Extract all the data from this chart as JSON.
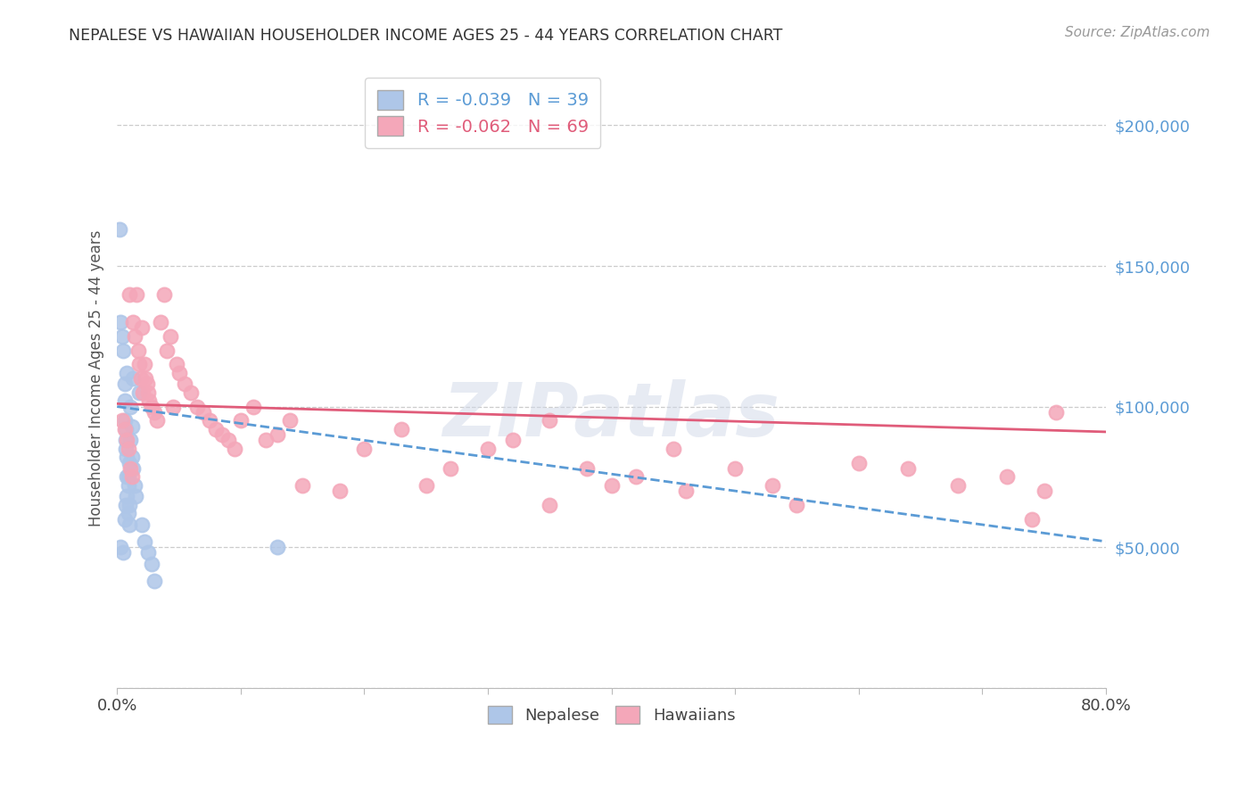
{
  "title": "NEPALESE VS HAWAIIAN HOUSEHOLDER INCOME AGES 25 - 44 YEARS CORRELATION CHART",
  "source": "Source: ZipAtlas.com",
  "ylabel": "Householder Income Ages 25 - 44 years",
  "xlim": [
    0.0,
    0.8
  ],
  "ylim": [
    0,
    220000
  ],
  "r_nepalese": -0.039,
  "n_nepalese": 39,
  "r_hawaiian": -0.062,
  "n_hawaiian": 69,
  "nepalese_color": "#aec6e8",
  "hawaiian_color": "#f4a7b9",
  "nepalese_line_color": "#5b9bd5",
  "hawaiian_line_color": "#e05c7a",
  "nep_line_x0": 0.0,
  "nep_line_y0": 100000,
  "nep_line_x1": 0.8,
  "nep_line_y1": 52000,
  "haw_line_x0": 0.0,
  "haw_line_y0": 101000,
  "haw_line_x1": 0.8,
  "haw_line_y1": 91000,
  "nep_x": [
    0.002,
    0.003,
    0.003,
    0.004,
    0.005,
    0.005,
    0.006,
    0.006,
    0.006,
    0.007,
    0.007,
    0.007,
    0.007,
    0.008,
    0.008,
    0.008,
    0.009,
    0.009,
    0.009,
    0.01,
    0.01,
    0.01,
    0.011,
    0.011,
    0.012,
    0.012,
    0.013,
    0.013,
    0.014,
    0.015,
    0.018,
    0.02,
    0.022,
    0.025,
    0.028,
    0.03,
    0.006,
    0.008,
    0.13
  ],
  "nep_y": [
    163000,
    130000,
    50000,
    125000,
    120000,
    48000,
    102000,
    95000,
    60000,
    92000,
    88000,
    85000,
    65000,
    82000,
    75000,
    68000,
    75000,
    72000,
    62000,
    65000,
    58000,
    80000,
    100000,
    88000,
    93000,
    82000,
    110000,
    78000,
    72000,
    68000,
    105000,
    58000,
    52000,
    48000,
    44000,
    38000,
    108000,
    112000,
    50000
  ],
  "haw_x": [
    0.004,
    0.006,
    0.008,
    0.009,
    0.01,
    0.011,
    0.012,
    0.013,
    0.014,
    0.016,
    0.017,
    0.018,
    0.019,
    0.02,
    0.021,
    0.022,
    0.023,
    0.024,
    0.025,
    0.026,
    0.028,
    0.03,
    0.032,
    0.035,
    0.038,
    0.04,
    0.043,
    0.045,
    0.048,
    0.05,
    0.055,
    0.06,
    0.065,
    0.07,
    0.075,
    0.08,
    0.085,
    0.09,
    0.095,
    0.1,
    0.11,
    0.12,
    0.13,
    0.14,
    0.15,
    0.18,
    0.2,
    0.23,
    0.25,
    0.27,
    0.3,
    0.32,
    0.35,
    0.38,
    0.4,
    0.42,
    0.45,
    0.5,
    0.53,
    0.6,
    0.64,
    0.68,
    0.72,
    0.75,
    0.35,
    0.46,
    0.55,
    0.76,
    0.74
  ],
  "haw_y": [
    95000,
    92000,
    88000,
    85000,
    140000,
    78000,
    75000,
    130000,
    125000,
    140000,
    120000,
    115000,
    110000,
    128000,
    105000,
    115000,
    110000,
    108000,
    105000,
    102000,
    100000,
    98000,
    95000,
    130000,
    140000,
    120000,
    125000,
    100000,
    115000,
    112000,
    108000,
    105000,
    100000,
    98000,
    95000,
    92000,
    90000,
    88000,
    85000,
    95000,
    100000,
    88000,
    90000,
    95000,
    72000,
    70000,
    85000,
    92000,
    72000,
    78000,
    85000,
    88000,
    95000,
    78000,
    72000,
    75000,
    85000,
    78000,
    72000,
    80000,
    78000,
    72000,
    75000,
    70000,
    65000,
    70000,
    65000,
    98000,
    60000
  ]
}
